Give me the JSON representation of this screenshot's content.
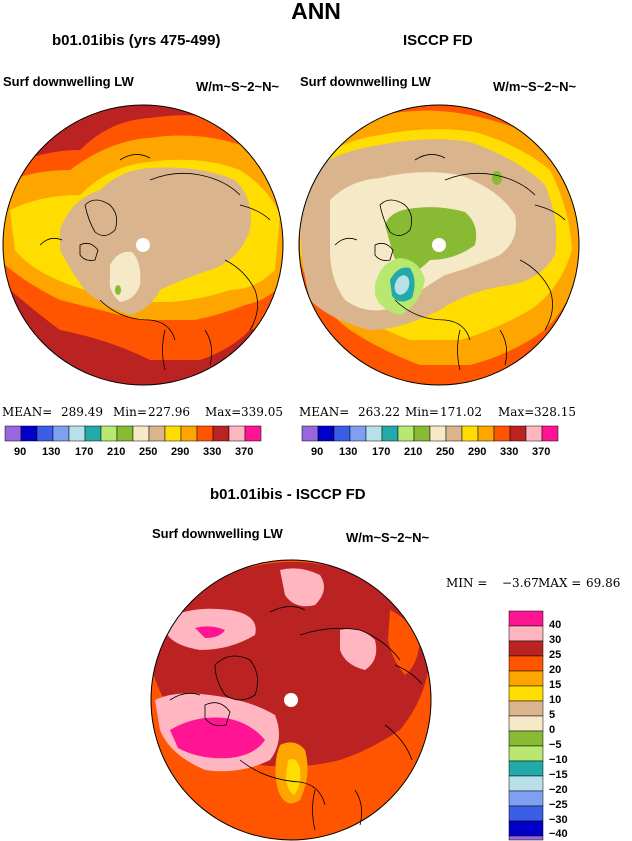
{
  "title": "ANN",
  "panels": [
    {
      "title": "b01.01ibis (yrs 475-499)",
      "variable": "Surf downwelling LW",
      "units": "W/m~S~2~N~",
      "stats": {
        "mean_label": "MEAN=",
        "mean": "289.49",
        "min_label": "Min=",
        "min": "227.96",
        "max_label": "Max=",
        "max": "339.05"
      }
    },
    {
      "title": "ISCCP FD",
      "variable": "Surf downwelling LW",
      "units": "W/m~S~2~N~",
      "stats": {
        "mean_label": "MEAN=",
        "mean": "263.22",
        "min_label": "Min=",
        "min": "171.02",
        "max_label": "Max=",
        "max": "328.15"
      }
    },
    {
      "title": "b01.01ibis - ISCCP FD",
      "variable": "Surf downwelling LW",
      "units": "W/m~S~2~N~",
      "stats": {
        "min_label": "MIN =",
        "min": "−3.67",
        "max_label": "MAX =",
        "max": "69.86"
      }
    }
  ],
  "chart_data": [
    {
      "type": "heatmap",
      "projection": "polar stereographic (north pole)",
      "title": "b01.01ibis (yrs 475-499)",
      "variable": "Surf downwelling LW",
      "units": "W/m~S~2~N~",
      "mean": 289.49,
      "min": 227.96,
      "max": 339.05,
      "colorbar": {
        "labels": [
          "90",
          "130",
          "170",
          "210",
          "250",
          "290",
          "330",
          "370"
        ],
        "colors": [
          "#9966dd",
          "#0000c8",
          "#3a5fe6",
          "#7fa0f0",
          "#b8e0e8",
          "#22aaaa",
          "#b8e870",
          "#88bb33",
          "#f5e9c8",
          "#d9b48c",
          "#ffdd00",
          "#ffa500",
          "#ff5500",
          "#bb2222",
          "#ffb6c1",
          "#ff1493"
        ]
      }
    },
    {
      "type": "heatmap",
      "projection": "polar stereographic (north pole)",
      "title": "ISCCP FD",
      "variable": "Surf downwelling LW",
      "units": "W/m~S~2~N~",
      "mean": 263.22,
      "min": 171.02,
      "max": 328.15,
      "colorbar": {
        "labels": [
          "90",
          "130",
          "170",
          "210",
          "250",
          "290",
          "330",
          "370"
        ],
        "colors": [
          "#9966dd",
          "#0000c8",
          "#3a5fe6",
          "#7fa0f0",
          "#b8e0e8",
          "#22aaaa",
          "#b8e870",
          "#88bb33",
          "#f5e9c8",
          "#d9b48c",
          "#ffdd00",
          "#ffa500",
          "#ff5500",
          "#bb2222",
          "#ffb6c1",
          "#ff1493"
        ]
      }
    },
    {
      "type": "heatmap",
      "projection": "polar stereographic (north pole)",
      "title": "b01.01ibis - ISCCP FD",
      "variable": "Surf downwelling LW",
      "units": "W/m~S~2~N~",
      "min": -3.67,
      "max": 69.86,
      "colorbar": {
        "labels": [
          "40",
          "30",
          "25",
          "20",
          "15",
          "10",
          "5",
          "0",
          "−5",
          "−10",
          "−15",
          "−20",
          "−25",
          "−30",
          "−40"
        ],
        "colors": [
          "#ff1493",
          "#ffb6c1",
          "#bb2222",
          "#ff5500",
          "#ffa500",
          "#ffdd00",
          "#d9b48c",
          "#f5e9c8",
          "#88bb33",
          "#b8e870",
          "#22aaaa",
          "#b8e0e8",
          "#7fa0f0",
          "#3a5fe6",
          "#0000c8",
          "#9966dd"
        ]
      }
    }
  ]
}
